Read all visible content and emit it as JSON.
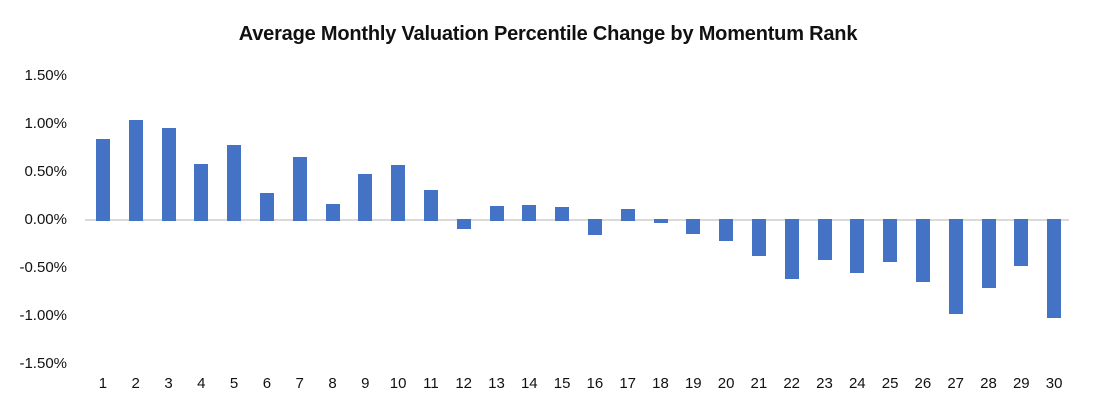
{
  "chart_data": {
    "type": "bar",
    "title": "Average Monthly Valuation Percentile Change by Momentum Rank",
    "xlabel": "",
    "ylabel": "",
    "unit": "%",
    "categories": [
      "1",
      "2",
      "3",
      "4",
      "5",
      "6",
      "7",
      "8",
      "9",
      "10",
      "11",
      "12",
      "13",
      "14",
      "15",
      "16",
      "17",
      "18",
      "19",
      "20",
      "21",
      "22",
      "23",
      "24",
      "25",
      "26",
      "27",
      "28",
      "29",
      "30"
    ],
    "values": [
      0.84,
      1.04,
      0.96,
      0.58,
      0.78,
      0.28,
      0.65,
      0.17,
      0.48,
      0.57,
      0.31,
      -0.08,
      0.15,
      0.16,
      0.14,
      -0.15,
      0.11,
      -0.02,
      -0.14,
      -0.21,
      -0.36,
      -0.6,
      -0.41,
      -0.54,
      -0.43,
      -0.63,
      -0.97,
      -0.7,
      -0.47,
      -1.01
    ],
    "y_ticks": [
      {
        "value": 1.5,
        "label": "1.50%"
      },
      {
        "value": 1.0,
        "label": "1.00%"
      },
      {
        "value": 0.5,
        "label": "0.50%"
      },
      {
        "value": 0.0,
        "label": "0.00%"
      },
      {
        "value": -0.5,
        "label": "-0.50%"
      },
      {
        "value": -1.0,
        "label": "-1.00%"
      },
      {
        "value": -1.5,
        "label": "-1.50%"
      }
    ],
    "ylim": [
      -1.5,
      1.5
    ],
    "grid": "zero-line-only",
    "legend": "none",
    "bar_color": "#4472C4",
    "gridline_color": "#D9D9D9",
    "text_color": "#111111",
    "background_color": "#FFFFFF"
  }
}
